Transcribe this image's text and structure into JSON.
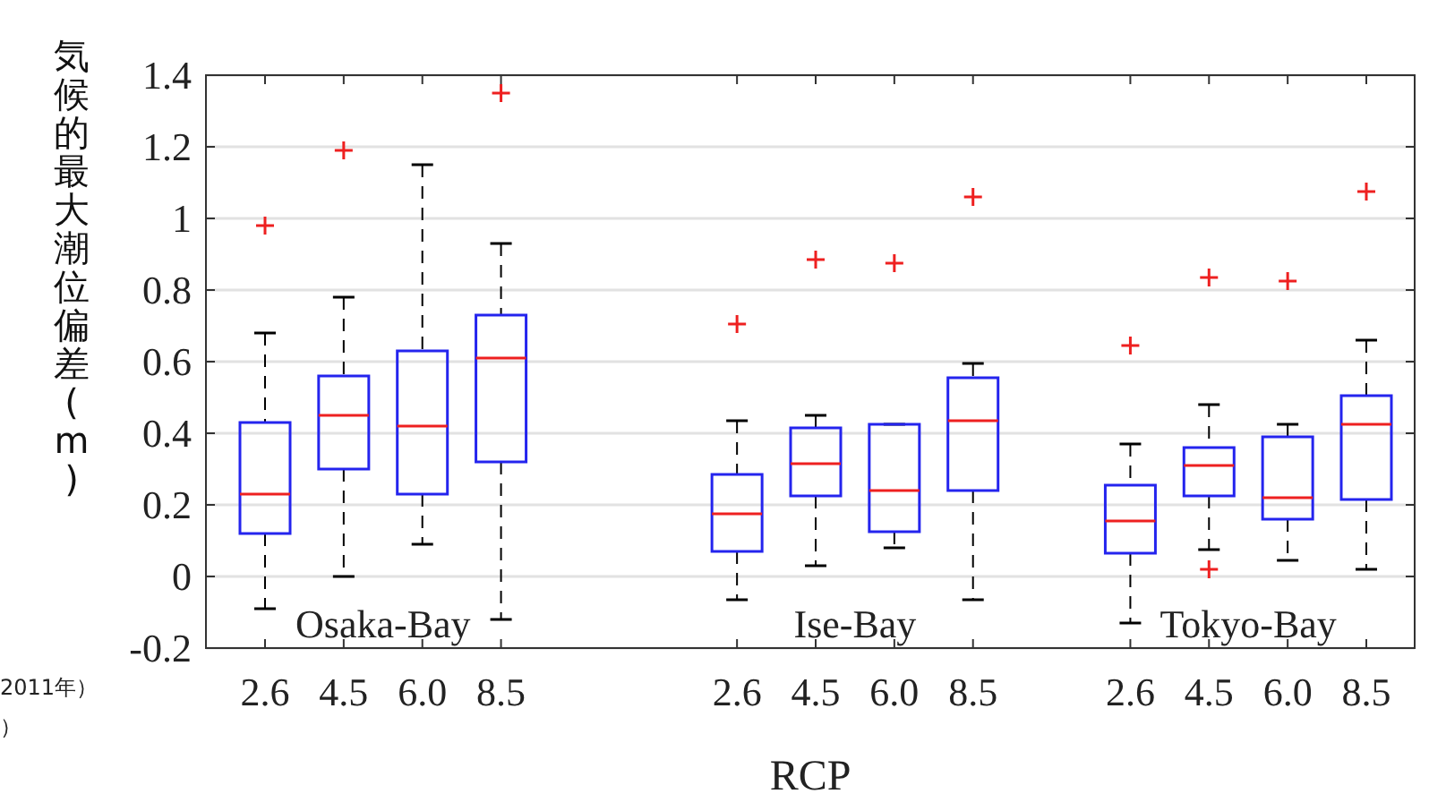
{
  "chart_data": {
    "type": "box",
    "xlabel": "RCP",
    "ylabel": "気候的最大潮位偏差(m)",
    "categories": [
      "2.6",
      "4.5",
      "6.0",
      "8.5",
      null,
      null,
      "2.6",
      "4.5",
      "6.0",
      "8.5",
      null,
      "2.6",
      "4.5",
      "6.0",
      "8.5"
    ],
    "boxes": [
      {
        "low": -0.09,
        "q1": 0.12,
        "median": 0.23,
        "q3": 0.43,
        "high": 0.68,
        "outliers": [
          0.98
        ]
      },
      {
        "low": 0.0,
        "q1": 0.3,
        "median": 0.45,
        "q3": 0.56,
        "high": 0.78,
        "outliers": [
          1.19
        ]
      },
      {
        "low": 0.09,
        "q1": 0.23,
        "median": 0.42,
        "q3": 0.63,
        "high": 1.15
      },
      {
        "low": -0.12,
        "q1": 0.32,
        "median": 0.61,
        "q3": 0.73,
        "high": 0.93,
        "outliers": [
          1.35
        ]
      },
      null,
      null,
      {
        "low": -0.065,
        "q1": 0.07,
        "median": 0.175,
        "q3": 0.285,
        "high": 0.435,
        "outliers": [
          0.705
        ]
      },
      {
        "low": 0.03,
        "q1": 0.225,
        "median": 0.315,
        "q3": 0.415,
        "high": 0.45,
        "outliers": [
          0.885
        ]
      },
      {
        "low": 0.08,
        "q1": 0.125,
        "median": 0.24,
        "q3": 0.425,
        "high": 0.425,
        "outliers": [
          0.875
        ]
      },
      {
        "low": -0.065,
        "q1": 0.24,
        "median": 0.435,
        "q3": 0.555,
        "high": 0.595,
        "outliers": [
          1.06
        ]
      },
      null,
      {
        "low": -0.13,
        "q1": 0.065,
        "median": 0.155,
        "q3": 0.255,
        "high": 0.37,
        "outliers": [
          0.645
        ]
      },
      {
        "low": 0.075,
        "q1": 0.225,
        "median": 0.31,
        "q3": 0.36,
        "high": 0.48,
        "outliers": [
          0.835,
          0.02
        ]
      },
      {
        "low": 0.045,
        "q1": 0.16,
        "median": 0.22,
        "q3": 0.39,
        "high": 0.425,
        "outliers": [
          0.825
        ]
      },
      {
        "low": 0.02,
        "q1": 0.215,
        "median": 0.425,
        "q3": 0.505,
        "high": 0.66,
        "outliers": [
          1.075
        ]
      }
    ],
    "ylim": [
      -0.2,
      1.4
    ],
    "yticks": [
      -0.2,
      0,
      0.2,
      0.4,
      0.6,
      0.8,
      1,
      1.2,
      1.4
    ],
    "grid": "y",
    "annotations": [
      "Osaka-Bay",
      "Ise-Bay",
      "Tokyo-Bay",
      "2011年）",
      "）"
    ]
  }
}
